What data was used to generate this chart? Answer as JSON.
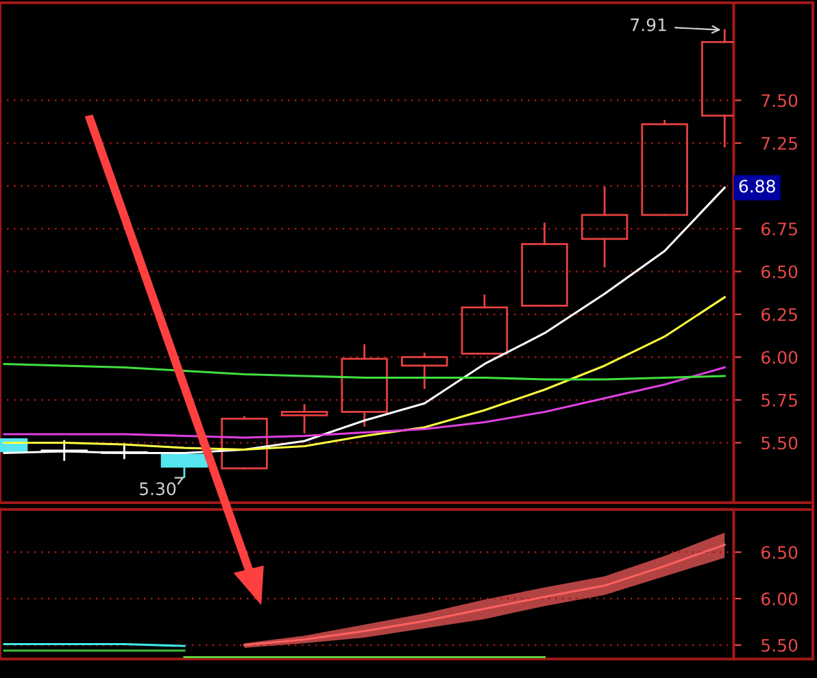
{
  "chart_data": [
    {
      "type": "candlestick",
      "categories": [
        null,
        null,
        null,
        null,
        null,
        null,
        null,
        null,
        null,
        null,
        null,
        null,
        null
      ],
      "ohlc": [
        [
          5.52,
          5.52,
          5.45,
          5.45
        ],
        [
          5.45,
          5.51,
          5.4,
          5.45
        ],
        [
          5.44,
          5.49,
          5.41,
          5.44
        ],
        [
          5.43,
          5.43,
          5.3,
          5.36
        ],
        [
          5.35,
          5.65,
          5.35,
          5.64
        ],
        [
          5.66,
          5.72,
          5.56,
          5.68
        ],
        [
          5.68,
          6.07,
          5.6,
          5.99
        ],
        [
          5.95,
          6.02,
          5.82,
          6.0
        ],
        [
          6.02,
          6.36,
          6.02,
          6.29
        ],
        [
          6.3,
          6.78,
          6.3,
          6.66
        ],
        [
          6.69,
          6.99,
          6.53,
          6.83
        ],
        [
          6.83,
          7.38,
          6.83,
          7.36
        ],
        [
          7.41,
          7.91,
          7.23,
          7.84
        ]
      ],
      "colors": [
        "#55e6f0",
        "#ffffff",
        "#ffffff",
        "#55e6f0",
        "#e84040",
        "#e84040",
        "#e84040",
        "#e84040",
        "#e84040",
        "#e84040",
        "#e84040",
        "#e84040",
        "#e84040"
      ],
      "series": [
        {
          "type": "line",
          "color": "#ffffff",
          "values": [
            5.44,
            5.45,
            5.44,
            5.44,
            5.46,
            5.51,
            5.63,
            5.73,
            5.96,
            6.14,
            6.37,
            6.62,
            6.99
          ]
        },
        {
          "type": "line",
          "color": "#ffff40",
          "values": [
            5.5,
            5.5,
            5.49,
            5.47,
            5.46,
            5.48,
            5.54,
            5.59,
            5.69,
            5.81,
            5.95,
            6.12,
            6.35
          ]
        },
        {
          "type": "line",
          "color": "#e040e0",
          "values": [
            5.55,
            5.55,
            5.55,
            5.54,
            5.53,
            5.54,
            5.56,
            5.58,
            5.62,
            5.68,
            5.76,
            5.84,
            5.94
          ]
        },
        {
          "type": "line",
          "color": "#40e040",
          "values": [
            5.96,
            5.95,
            5.94,
            5.92,
            5.9,
            5.89,
            5.88,
            5.88,
            5.88,
            5.87,
            5.87,
            5.88,
            5.89
          ]
        }
      ],
      "ylim": [
        5.15,
        8.07
      ],
      "yticks": [
        {
          "value": 5.5,
          "label": "5.50"
        },
        {
          "value": 5.75,
          "label": "5.75"
        },
        {
          "value": 6.0,
          "label": "6.00"
        },
        {
          "value": 6.25,
          "label": "6.25"
        },
        {
          "value": 6.5,
          "label": "6.50"
        },
        {
          "value": 6.75,
          "label": "6.75"
        },
        {
          "value": 7.0,
          "label": null
        },
        {
          "value": 7.25,
          "label": "7.25"
        },
        {
          "value": 7.5,
          "label": "7.50"
        }
      ],
      "annotations": [
        "7.91",
        "5.30",
        "6.88"
      ],
      "grid": "y",
      "legend": false,
      "tick_labels": "y"
    },
    {
      "type": "line",
      "categories": [
        null,
        null,
        null,
        null,
        null,
        null,
        null,
        null,
        null,
        null,
        null,
        null,
        null
      ],
      "series": [
        {
          "type": "line",
          "color": "#ff6060",
          "values": [
            null,
            null,
            null,
            null,
            5.5,
            5.56,
            5.65,
            5.76,
            5.89,
            6.02,
            6.14,
            6.35,
            6.58
          ],
          "lower": [
            null,
            null,
            null,
            null,
            5.47,
            5.52,
            5.58,
            5.68,
            5.78,
            5.92,
            6.04,
            6.24,
            6.44
          ],
          "upper": [
            null,
            null,
            null,
            null,
            5.52,
            5.6,
            5.72,
            5.84,
            5.99,
            6.12,
            6.24,
            6.46,
            6.71
          ]
        },
        {
          "type": "line",
          "color": "#40e8e8",
          "values": [
            5.51,
            5.51,
            5.51,
            5.49,
            null,
            null,
            null,
            null,
            null,
            null,
            null,
            null,
            null
          ]
        },
        {
          "type": "line",
          "color": "#40c040",
          "values": [
            5.44,
            5.44,
            5.44,
            5.44,
            null,
            null,
            null,
            null,
            null,
            null,
            null,
            null,
            null
          ]
        },
        {
          "type": "line",
          "color": "#60d040",
          "values": [
            null,
            null,
            null,
            5.37,
            5.37,
            5.37,
            5.37,
            5.37,
            5.37,
            5.37,
            null,
            null,
            null
          ]
        }
      ],
      "ylim": [
        5.35,
        6.96
      ],
      "yticks": [
        {
          "value": 5.5,
          "label": "5.50"
        },
        {
          "value": 6.0,
          "label": "6.00"
        },
        {
          "value": 6.5,
          "label": "6.50"
        }
      ],
      "grid": "y",
      "legend": false,
      "tick_labels": "y"
    }
  ]
}
